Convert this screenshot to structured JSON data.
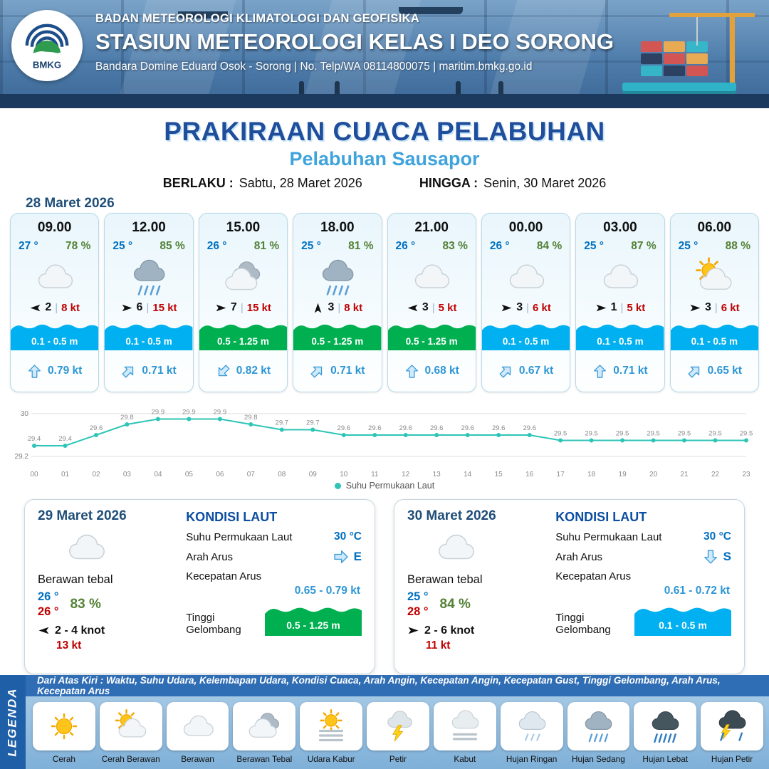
{
  "header": {
    "agency": "BADAN METEOROLOGI KLIMATOLOGI DAN GEOFISIKA",
    "station": "STASIUN METEOROLOGI KELAS I DEO SORONG",
    "contact": "Bandara Domine Eduard Osok - Sorong | No. Telp/WA 08114800075 | maritim.bmkg.go.id",
    "logo_text": "BMKG"
  },
  "title": {
    "main": "PRAKIRAAN CUACA PELABUHAN",
    "port": "Pelabuhan Sausapor",
    "valid_label": "BERLAKU :",
    "valid_value": "Sabtu, 28 Maret 2026",
    "until_label": "HINGGA :",
    "until_value": "Senin, 30 Maret 2026"
  },
  "forecast": {
    "date": "28 Maret 2026",
    "cards": [
      {
        "time": "09.00",
        "temp": "27 °",
        "humidity": "78 %",
        "icon": "berawan",
        "wind_deg": 180,
        "wind": "2",
        "gust": "8 kt",
        "wave": "0.1 - 0.5 m",
        "wave_color": "#00B0F0",
        "current_deg": 270,
        "current": "0.79 kt"
      },
      {
        "time": "12.00",
        "temp": "25 °",
        "humidity": "85 %",
        "icon": "hujan-sedang",
        "wind_deg": 0,
        "wind": "6",
        "gust": "15 kt",
        "wave": "0.1 - 0.5 m",
        "wave_color": "#00B0F0",
        "current_deg": 315,
        "current": "0.71 kt"
      },
      {
        "time": "15.00",
        "temp": "26 °",
        "humidity": "81 %",
        "icon": "berawan-tebal",
        "wind_deg": 0,
        "wind": "7",
        "gust": "15 kt",
        "wave": "0.5 - 1.25 m",
        "wave_color": "#00B050",
        "current_deg": 135,
        "current": "0.82 kt"
      },
      {
        "time": "18.00",
        "temp": "25 °",
        "humidity": "81 %",
        "icon": "hujan-sedang",
        "wind_deg": 270,
        "wind": "3",
        "gust": "8 kt",
        "wave": "0.5 - 1.25 m",
        "wave_color": "#00B050",
        "current_deg": 315,
        "current": "0.71 kt"
      },
      {
        "time": "21.00",
        "temp": "26 °",
        "humidity": "83 %",
        "icon": "berawan",
        "wind_deg": 180,
        "wind": "3",
        "gust": "5 kt",
        "wave": "0.5 - 1.25 m",
        "wave_color": "#00B050",
        "current_deg": 270,
        "current": "0.68 kt"
      },
      {
        "time": "00.00",
        "temp": "26 °",
        "humidity": "84 %",
        "icon": "berawan",
        "wind_deg": 0,
        "wind": "3",
        "gust": "6 kt",
        "wave": "0.1 - 0.5 m",
        "wave_color": "#00B0F0",
        "current_deg": 315,
        "current": "0.67 kt"
      },
      {
        "time": "03.00",
        "temp": "25 °",
        "humidity": "87 %",
        "icon": "berawan",
        "wind_deg": 0,
        "wind": "1",
        "gust": "5 kt",
        "wave": "0.1 - 0.5 m",
        "wave_color": "#00B0F0",
        "current_deg": 270,
        "current": "0.71 kt"
      },
      {
        "time": "06.00",
        "temp": "25 °",
        "humidity": "88 %",
        "icon": "cerah-berawan",
        "wind_deg": 0,
        "wind": "3",
        "gust": "6 kt",
        "wave": "0.1 - 0.5 m",
        "wave_color": "#00B0F0",
        "current_deg": 315,
        "current": "0.65 kt"
      }
    ]
  },
  "chart_data": {
    "type": "line",
    "title": "Suhu Permukaan Laut",
    "x": [
      "00",
      "01",
      "02",
      "03",
      "04",
      "05",
      "06",
      "07",
      "08",
      "09",
      "10",
      "11",
      "12",
      "13",
      "14",
      "15",
      "16",
      "17",
      "18",
      "19",
      "20",
      "21",
      "22",
      "23"
    ],
    "values": [
      29.4,
      29.4,
      29.6,
      29.8,
      29.9,
      29.9,
      29.9,
      29.8,
      29.7,
      29.7,
      29.6,
      29.6,
      29.6,
      29.6,
      29.6,
      29.6,
      29.6,
      29.5,
      29.5,
      29.5,
      29.5,
      29.5,
      29.5,
      29.5
    ],
    "ylim": [
      29.2,
      30
    ],
    "yticks": [
      29.2,
      30
    ],
    "xlabel": "",
    "ylabel": "",
    "line_color": "#2EC5B6",
    "legend": "Suhu Permukaan Laut",
    "legend_position": "bottom",
    "grid": true
  },
  "days": [
    {
      "date": "29 Maret 2026",
      "icon": "berawan",
      "condition": "Berawan tebal",
      "temp_min": "26 °",
      "temp_max": "26 °",
      "humidity": "83 %",
      "wind_deg": 180,
      "wind": "2 - 4 knot",
      "gust": "13 kt",
      "sea": {
        "title": "KONDISI LAUT",
        "sst_label": "Suhu Permukaan Laut",
        "sst": "30 °C",
        "dir_label": "Arah Arus",
        "dir_deg": 0,
        "dir": "E",
        "spd_label": "Kecepatan Arus",
        "spd": "0.65 - 0.79 kt",
        "wave_label": "Tinggi Gelombang",
        "wave": "0.5 - 1.25 m",
        "wave_color": "#00B050"
      }
    },
    {
      "date": "30 Maret 2026",
      "icon": "berawan",
      "condition": "Berawan tebal",
      "temp_min": "25 °",
      "temp_max": "28 °",
      "humidity": "84 %",
      "wind_deg": 0,
      "wind": "2 - 6 knot",
      "gust": "11 kt",
      "sea": {
        "title": "KONDISI LAUT",
        "sst_label": "Suhu Permukaan Laut",
        "sst": "30 °C",
        "dir_label": "Arah Arus",
        "dir_deg": 90,
        "dir": "S",
        "spd_label": "Kecepatan Arus",
        "spd": "0.61 - 0.72 kt",
        "wave_label": "Tinggi Gelombang",
        "wave": "0.1 - 0.5 m",
        "wave_color": "#00B0F0"
      }
    }
  ],
  "legend": {
    "title": "LEGENDA",
    "note": "Dari Atas Kiri : Waktu, Suhu Udara, Kelembapan Udara, Kondisi Cuaca, Arah Angin, Kecepatan Angin, Kecepatan Gust, Tinggi Gelombang, Arah Arus, Kecepatan Arus",
    "items": [
      {
        "label": "Cerah",
        "icon": "cerah"
      },
      {
        "label": "Cerah Berawan",
        "icon": "cerah-berawan"
      },
      {
        "label": "Berawan",
        "icon": "berawan"
      },
      {
        "label": "Berawan Tebal",
        "icon": "berawan-tebal"
      },
      {
        "label": "Udara Kabur",
        "icon": "udara-kabur"
      },
      {
        "label": "Petir",
        "icon": "petir"
      },
      {
        "label": "Kabut",
        "icon": "kabut"
      },
      {
        "label": "Hujan Ringan",
        "icon": "hujan-ringan"
      },
      {
        "label": "Hujan Sedang",
        "icon": "hujan-sedang"
      },
      {
        "label": "Hujan Lebat",
        "icon": "hujan-lebat"
      },
      {
        "label": "Hujan Petir",
        "icon": "hujan-petir"
      }
    ]
  },
  "colors": {
    "title_navy": "#1F4E9C",
    "port_blue": "#3FA3DC",
    "temp_blue": "#0070C0",
    "humidity_green": "#538135",
    "gust_red": "#C00000",
    "wave_low": "#00B0F0",
    "wave_moderate": "#00B050",
    "current_blue": "#2E96D5",
    "sst_line_teal": "#2EC5B6"
  }
}
